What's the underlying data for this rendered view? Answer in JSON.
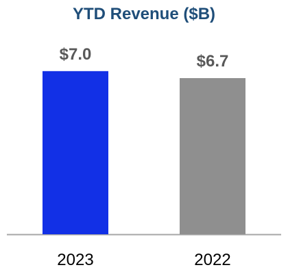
{
  "chart_data": {
    "type": "bar",
    "title": "YTD Revenue ($B)",
    "categories": [
      "2023",
      "2022"
    ],
    "values": [
      7.0,
      6.7
    ],
    "data_labels": [
      "$7.0",
      "$6.7"
    ],
    "bar_colors": [
      "#1230e6",
      "#8f8f8f"
    ],
    "title_color": "#1f4e79",
    "label_color": "#595959",
    "axis_color": "#a6a6a6",
    "xlabel": "",
    "ylabel": "",
    "ylim": [
      0,
      7.7
    ],
    "grid": false,
    "legend": "none"
  }
}
